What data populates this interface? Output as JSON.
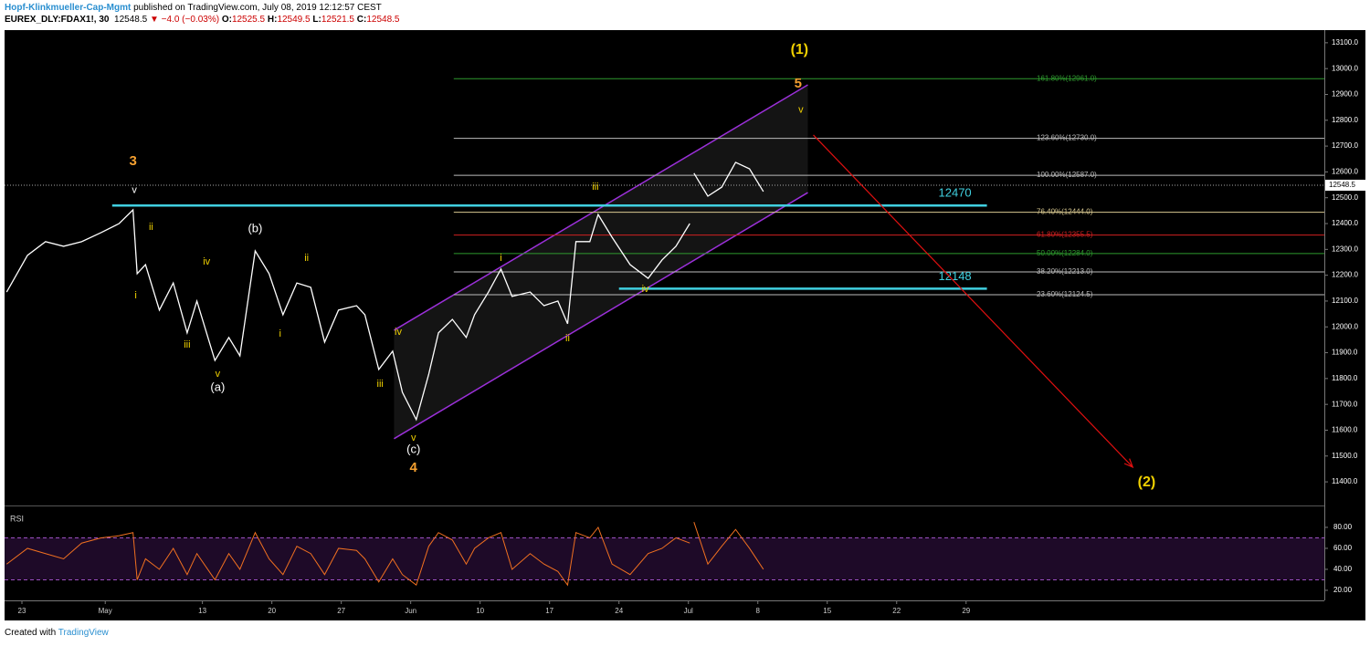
{
  "header": {
    "author": "Hopf-Klinkmueller-Cap-Mgmt",
    "published": "published on TradingView.com, July 08, 2019 12:12:57 CEST",
    "symbol": "EUREX_DLY:FDAX1!, 30",
    "price": "12548.5",
    "change": "▼ −4.0 (−0.03%)",
    "open_label": "O:",
    "open": "12525.5",
    "high_label": "H:",
    "high": "12549.5",
    "low_label": "L:",
    "low": "12521.5",
    "close_label": "C:",
    "close": "12548.5"
  },
  "footer": {
    "text": "Created with",
    "brand": "TradingView"
  },
  "chart_data": [
    {
      "type": "line",
      "color": "#ffffff",
      "x": [
        -1.1,
        0.4,
        1.7,
        3.0,
        4.3,
        5.7,
        7.0,
        8.0,
        8.3,
        8.9,
        9.9,
        10.9,
        11.9,
        12.6,
        13.9,
        14.9,
        15.7,
        16.8,
        17.8,
        18.8,
        19.8,
        20.8,
        21.8,
        22.8,
        24.1,
        24.7,
        25.7,
        26.7,
        27.4,
        28.4,
        29.3,
        30.0,
        31.0,
        32.0,
        32.6,
        33.6,
        34.5,
        35.3,
        36.6,
        37.6,
        38.6,
        39.3,
        39.9,
        40.9,
        41.5,
        42.5,
        43.8,
        45.1,
        46.1,
        47.1,
        48.1,
        48.2,
        48.4,
        49.4,
        50.4,
        51.4,
        52.4,
        53.4
      ],
      "values": [
        12135,
        12277,
        12330,
        12312,
        12330,
        12365,
        12400,
        12453,
        12206,
        12241,
        12065,
        12170,
        11977,
        12100,
        11870,
        11959,
        11888,
        12294,
        12206,
        12047,
        12170,
        12153,
        11941,
        12065,
        12082,
        12047,
        11835,
        11906,
        11747,
        11641,
        11817,
        11977,
        12029,
        11959,
        12047,
        12135,
        12224,
        12118,
        12135,
        12082,
        12100,
        12012,
        12330,
        12330,
        12435,
        12347,
        12241,
        12188,
        12259,
        12312,
        12400,
        null,
        12595,
        12506,
        12541,
        12637,
        12612,
        12524
      ],
      "xlim": [
        -1.25,
        93.8
      ],
      "xticks": [
        {
          "value": 0,
          "label": "23"
        },
        {
          "value": 6,
          "label": "May"
        },
        {
          "value": 13,
          "label": "13"
        },
        {
          "value": 18,
          "label": "20"
        },
        {
          "value": 23,
          "label": "27"
        },
        {
          "value": 28,
          "label": "Jun"
        },
        {
          "value": 33,
          "label": "10"
        },
        {
          "value": 38,
          "label": "17"
        },
        {
          "value": 43,
          "label": "24"
        },
        {
          "value": 48,
          "label": "Jul"
        },
        {
          "value": 53,
          "label": "8"
        },
        {
          "value": 58,
          "label": "15"
        },
        {
          "value": 63,
          "label": "22"
        },
        {
          "value": 68,
          "label": "29"
        }
      ],
      "ylim": [
        11312,
        13149
      ],
      "yticks": [
        {
          "value": 11400,
          "label": "11400.0"
        },
        {
          "value": 11500,
          "label": "11500.0"
        },
        {
          "value": 11600,
          "label": "11600.0"
        },
        {
          "value": 11700,
          "label": "11700.0"
        },
        {
          "value": 11800,
          "label": "11800.0"
        },
        {
          "value": 11900,
          "label": "11900.0"
        },
        {
          "value": 12000,
          "label": "12000.0"
        },
        {
          "value": 12100,
          "label": "12100.0"
        },
        {
          "value": 12200,
          "label": "12200.0"
        },
        {
          "value": 12300,
          "label": "12300.0"
        },
        {
          "value": 12400,
          "label": "12400.0"
        },
        {
          "value": 12500,
          "label": "12500.0"
        },
        {
          "value": 12600,
          "label": "12600.0"
        },
        {
          "value": 12700,
          "label": "12700.0"
        },
        {
          "value": 12800,
          "label": "12800.0"
        },
        {
          "value": 12900,
          "label": "12900.0"
        },
        {
          "value": 13000,
          "label": "13000.0"
        },
        {
          "value": 13100,
          "label": "13100.0"
        }
      ],
      "last_price": {
        "value": 12548.5,
        "label": "12548.5"
      },
      "fib_start": 31.1,
      "fib_levels": [
        {
          "value": 12961,
          "label": "161.80%(12961.0)",
          "color": "#2e9a2e"
        },
        {
          "value": 12730,
          "label": "123.60%(12730.0)",
          "color": "#bbbbbb"
        },
        {
          "value": 12587,
          "label": "100.00%(12587.0)",
          "color": "#bbbbbb"
        },
        {
          "value": 12444,
          "label": "76.40%(12444.0)",
          "color": "#d8c890"
        },
        {
          "value": 12355.5,
          "label": "61.80%(12355.5)",
          "color": "#d02020"
        },
        {
          "value": 12284,
          "label": "50.00%(12284.0)",
          "color": "#2e9a2e"
        },
        {
          "value": 12213,
          "label": "38.20%(12213.0)",
          "color": "#bbbbbb"
        },
        {
          "value": 12124.5,
          "label": "23.60%(12124.5)",
          "color": "#bbbbbb"
        }
      ],
      "levels": [
        {
          "value": 12470,
          "from": 6.5,
          "to": 69.5
        },
        {
          "value": 12148,
          "from": 43,
          "to": 69.5
        }
      ],
      "level_color": "#40d0e0",
      "channel": {
        "upper": [
          [
            26.8,
            11987
          ],
          [
            56.6,
            12937
          ]
        ],
        "lower": [
          [
            26.8,
            11567
          ],
          [
            56.6,
            12520
          ]
        ],
        "color": "#9b30d9"
      },
      "arrow": {
        "from": [
          57.0,
          12743
        ],
        "to": [
          80.0,
          11457
        ],
        "color": "#e01010"
      },
      "annotations": [
        {
          "text": "(1)",
          "x": 56,
          "y": 13072,
          "color": "#f0d000",
          "size": 16
        },
        {
          "text": "5",
          "x": 55.9,
          "y": 12941,
          "color": "#f5a030",
          "size": 15
        },
        {
          "text": "v",
          "x": 56.1,
          "y": 12839,
          "color": "#f0d000",
          "size": 11
        },
        {
          "text": "3",
          "x": 8.0,
          "y": 12641,
          "color": "#f5a030",
          "size": 15
        },
        {
          "text": "v",
          "x": 8.1,
          "y": 12528,
          "color": "#ffffff",
          "size": 11
        },
        {
          "text": "ii",
          "x": 9.3,
          "y": 12386,
          "color": "#f0d000",
          "size": 11
        },
        {
          "text": "i",
          "x": 8.2,
          "y": 12121,
          "color": "#f0d000",
          "size": 11
        },
        {
          "text": "iv",
          "x": 13.3,
          "y": 12252,
          "color": "#f0d000",
          "size": 11
        },
        {
          "text": "iii",
          "x": 11.9,
          "y": 11930,
          "color": "#f0d000",
          "size": 11
        },
        {
          "text": "v",
          "x": 14.1,
          "y": 11817,
          "color": "#f0d000",
          "size": 11
        },
        {
          "text": "(a)",
          "x": 14.1,
          "y": 11764,
          "color": "#ffffff",
          "size": 13
        },
        {
          "text": "(b)",
          "x": 16.8,
          "y": 12379,
          "color": "#ffffff",
          "size": 13
        },
        {
          "text": "ii",
          "x": 20.5,
          "y": 12266,
          "color": "#f0d000",
          "size": 11
        },
        {
          "text": "i",
          "x": 18.6,
          "y": 11973,
          "color": "#f0d000",
          "size": 11
        },
        {
          "text": "iv",
          "x": 27.1,
          "y": 11980,
          "color": "#f0d000",
          "size": 11
        },
        {
          "text": "iii",
          "x": 25.8,
          "y": 11778,
          "color": "#f0d000",
          "size": 11
        },
        {
          "text": "v",
          "x": 28.2,
          "y": 11570,
          "color": "#f0d000",
          "size": 11
        },
        {
          "text": "(c)",
          "x": 28.2,
          "y": 11524,
          "color": "#ffffff",
          "size": 13
        },
        {
          "text": "4",
          "x": 28.2,
          "y": 11453,
          "color": "#f5a030",
          "size": 15
        },
        {
          "text": "i",
          "x": 34.5,
          "y": 12266,
          "color": "#f0d000",
          "size": 11
        },
        {
          "text": "ii",
          "x": 39.3,
          "y": 11955,
          "color": "#f0d000",
          "size": 11
        },
        {
          "text": "iii",
          "x": 41.3,
          "y": 12541,
          "color": "#f0d000",
          "size": 11
        },
        {
          "text": "iv",
          "x": 44.9,
          "y": 12146,
          "color": "#f0d000",
          "size": 11
        },
        {
          "text": "(2)",
          "x": 81.0,
          "y": 11397,
          "color": "#f0d000",
          "size": 16
        }
      ]
    },
    {
      "type": "line",
      "title": "RSI",
      "color": "#f07020",
      "x": [
        -1.1,
        0.4,
        1.7,
        3.0,
        4.3,
        5.7,
        7.0,
        8.0,
        8.3,
        8.9,
        9.9,
        10.9,
        11.9,
        12.6,
        13.9,
        14.9,
        15.7,
        16.8,
        17.8,
        18.8,
        19.8,
        20.8,
        21.8,
        22.8,
        24.1,
        24.7,
        25.7,
        26.7,
        27.4,
        28.4,
        29.3,
        30.0,
        31.0,
        32.0,
        32.6,
        33.6,
        34.5,
        35.3,
        36.6,
        37.6,
        38.6,
        39.3,
        39.9,
        40.9,
        41.5,
        42.5,
        43.8,
        45.1,
        46.1,
        47.1,
        48.1,
        48.2,
        48.4,
        49.4,
        50.4,
        51.4,
        52.4,
        53.4
      ],
      "values": [
        45,
        60,
        55,
        50,
        65,
        70,
        72,
        75,
        30,
        50,
        40,
        60,
        35,
        55,
        30,
        55,
        40,
        75,
        50,
        35,
        62,
        55,
        35,
        60,
        58,
        50,
        28,
        50,
        35,
        25,
        62,
        75,
        68,
        45,
        60,
        70,
        75,
        40,
        55,
        45,
        38,
        25,
        75,
        70,
        80,
        45,
        35,
        55,
        60,
        70,
        65,
        null,
        85,
        45,
        62,
        78,
        60,
        40
      ],
      "ylim": [
        10.4,
        99.1
      ],
      "yticks": [
        {
          "value": 20,
          "label": "20.00"
        },
        {
          "value": 40,
          "label": "40.00"
        },
        {
          "value": 60,
          "label": "60.00"
        },
        {
          "value": 80,
          "label": "80.00"
        }
      ],
      "bands": [
        30,
        70
      ]
    }
  ]
}
